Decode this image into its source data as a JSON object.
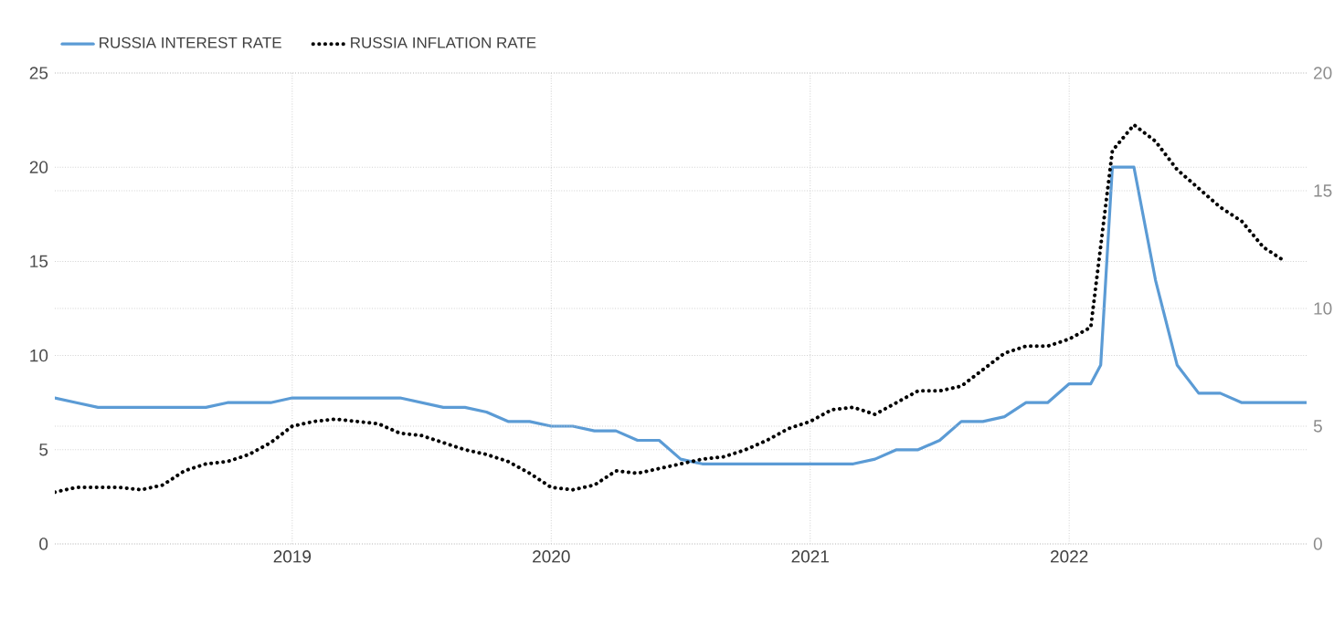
{
  "chart_data": {
    "type": "line",
    "xlim": [
      "2018-02",
      "2022-12"
    ],
    "xticks": [
      "2019",
      "2020",
      "2021",
      "2022"
    ],
    "ylim": [
      0,
      25
    ],
    "yticks": [
      0,
      5,
      10,
      15,
      20,
      25
    ],
    "y2lim": [
      0,
      20
    ],
    "y2ticks": [
      0,
      5,
      10,
      15,
      20
    ],
    "grid": true,
    "legend": "top left",
    "series": [
      {
        "name": "RUSSIA INTEREST RATE",
        "color": "#5b9bd5",
        "line_style": "solid",
        "x": [
          "2018-02",
          "2018-03",
          "2018-04",
          "2018-09",
          "2018-10",
          "2018-12",
          "2019-01",
          "2019-06",
          "2019-07",
          "2019-08",
          "2019-09",
          "2019-10",
          "2019-11",
          "2019-12",
          "2020-01",
          "2020-02",
          "2020-03",
          "2020-04",
          "2020-05",
          "2020-06",
          "2020-07",
          "2020-08",
          "2021-03",
          "2021-04",
          "2021-05",
          "2021-06",
          "2021-07",
          "2021-08",
          "2021-09",
          "2021-10",
          "2021-11",
          "2021-12",
          "2022-01",
          "2022-02",
          "2022-02-15",
          "2022-03",
          "2022-04",
          "2022-05",
          "2022-06",
          "2022-07",
          "2022-08",
          "2022-09",
          "2022-12"
        ],
        "values": [
          7.75,
          7.5,
          7.25,
          7.25,
          7.5,
          7.5,
          7.75,
          7.75,
          7.5,
          7.25,
          7.25,
          7,
          6.5,
          6.5,
          6.25,
          6.25,
          6,
          6,
          5.5,
          5.5,
          4.5,
          4.25,
          4.25,
          4.5,
          5,
          5,
          5.5,
          6.5,
          6.5,
          6.75,
          7.5,
          7.5,
          8.5,
          8.5,
          9.5,
          20,
          20,
          14,
          9.5,
          8,
          8,
          7.5,
          7.5
        ]
      },
      {
        "name": "RUSSIA INFLATION RATE",
        "color": "#000000",
        "line_style": "dotted",
        "axis": "y2",
        "x": [
          "2018-02",
          "2018-03",
          "2018-04",
          "2018-05",
          "2018-06",
          "2018-07",
          "2018-08",
          "2018-09",
          "2018-10",
          "2018-11",
          "2018-12",
          "2019-01",
          "2019-02",
          "2019-03",
          "2019-04",
          "2019-05",
          "2019-06",
          "2019-07",
          "2019-08",
          "2019-09",
          "2019-10",
          "2019-11",
          "2019-12",
          "2020-01",
          "2020-02",
          "2020-03",
          "2020-04",
          "2020-05",
          "2020-06",
          "2020-07",
          "2020-08",
          "2020-09",
          "2020-10",
          "2020-11",
          "2020-12",
          "2021-01",
          "2021-02",
          "2021-03",
          "2021-04",
          "2021-05",
          "2021-06",
          "2021-07",
          "2021-08",
          "2021-09",
          "2021-10",
          "2021-11",
          "2021-12",
          "2022-01",
          "2022-02",
          "2022-03",
          "2022-04",
          "2022-05",
          "2022-06",
          "2022-07",
          "2022-08",
          "2022-09",
          "2022-10",
          "2022-11"
        ],
        "values": [
          2.2,
          2.4,
          2.4,
          2.4,
          2.3,
          2.5,
          3.1,
          3.4,
          3.5,
          3.8,
          4.3,
          5.0,
          5.2,
          5.3,
          5.2,
          5.1,
          4.7,
          4.6,
          4.3,
          4.0,
          3.8,
          3.5,
          3.0,
          2.4,
          2.3,
          2.5,
          3.1,
          3.0,
          3.2,
          3.4,
          3.6,
          3.7,
          4.0,
          4.4,
          4.9,
          5.2,
          5.7,
          5.8,
          5.5,
          6.0,
          6.5,
          6.5,
          6.7,
          7.4,
          8.1,
          8.4,
          8.4,
          8.7,
          9.2,
          16.7,
          17.8,
          17.1,
          15.9,
          15.1,
          14.3,
          13.7,
          12.6,
          12.0
        ]
      }
    ]
  }
}
